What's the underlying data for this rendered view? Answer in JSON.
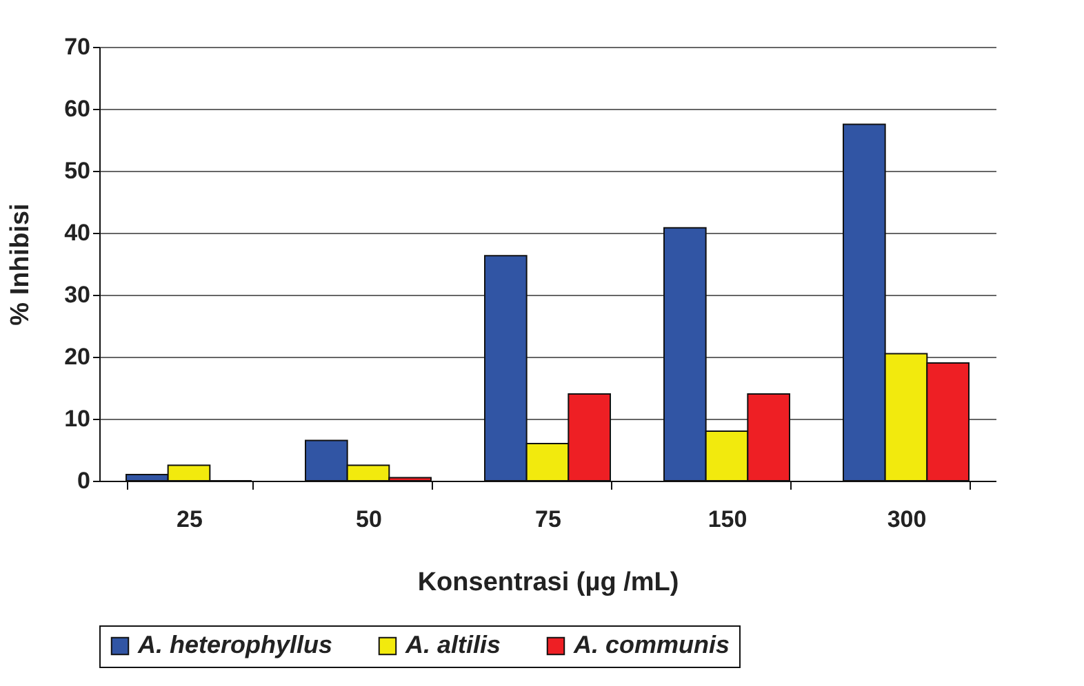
{
  "chart_data": {
    "type": "bar",
    "xlabel": "Konsentrasi (µg /mL)",
    "ylabel": "% Inhibisi",
    "categories": [
      "25",
      "50",
      "75",
      "150",
      "300"
    ],
    "series": [
      {
        "name": "A. heterophyllus",
        "color": "#3155a4",
        "values": [
          1,
          6.5,
          36.3,
          40.8,
          57.5
        ]
      },
      {
        "name": "A. altilis",
        "color": "#f2ea0d",
        "values": [
          2.5,
          2.5,
          6,
          8,
          20.5
        ]
      },
      {
        "name": "A. communis",
        "color": "#ee1f24",
        "values": [
          0,
          0.5,
          14,
          14,
          19
        ]
      }
    ],
    "ylim": [
      0,
      70
    ],
    "yticks": [
      0,
      10,
      20,
      30,
      40,
      50,
      60,
      70
    ],
    "grid": "y",
    "legend": "bottom"
  }
}
